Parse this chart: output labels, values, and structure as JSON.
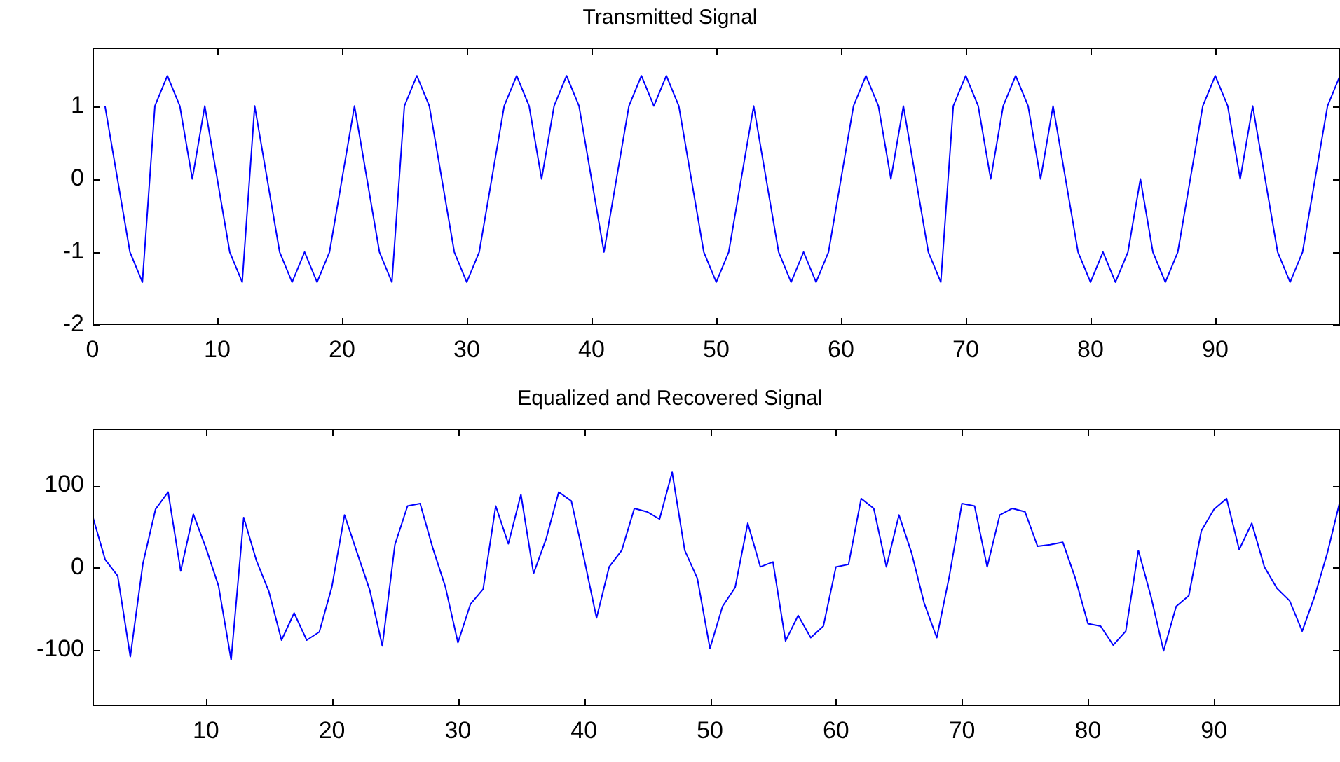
{
  "chart_data": [
    {
      "type": "line",
      "title": "Transmitted Signal",
      "color": "#0000ff",
      "marker": "none",
      "line_style": "solid",
      "grid": false,
      "legend": false,
      "x": [
        1,
        2,
        3,
        4,
        5,
        6,
        7,
        8,
        9,
        10,
        11,
        12,
        13,
        14,
        15,
        16,
        17,
        18,
        19,
        20,
        21,
        22,
        23,
        24,
        25,
        26,
        27,
        28,
        29,
        30,
        31,
        32,
        33,
        34,
        35,
        36,
        37,
        38,
        39,
        40,
        41,
        42,
        43,
        44,
        45,
        46,
        47,
        48,
        49,
        50,
        51,
        52,
        53,
        54,
        55,
        56,
        57,
        58,
        59,
        60,
        61,
        62,
        63,
        64,
        65,
        66,
        67,
        68,
        69,
        70,
        71,
        72,
        73,
        74,
        75,
        76,
        77,
        78,
        79,
        80,
        81,
        82,
        83,
        84,
        85,
        86,
        87,
        88,
        89,
        90,
        91,
        92,
        93,
        94,
        95,
        96,
        97,
        98,
        99,
        100
      ],
      "values": [
        1,
        0,
        -1,
        -1.414,
        1,
        1.414,
        1,
        0,
        1,
        0,
        -1,
        -1.414,
        1,
        0,
        -1,
        -1.414,
        -1,
        -1.414,
        -1,
        0,
        1,
        0,
        -1,
        -1.414,
        1,
        1.414,
        1,
        0,
        -1,
        -1.414,
        -1,
        0,
        1,
        1.414,
        1,
        0,
        1,
        1.414,
        1,
        0,
        -1,
        0,
        1,
        1.414,
        1,
        1.414,
        1,
        0,
        -1,
        -1.414,
        -1,
        0,
        1,
        0,
        -1,
        -1.414,
        -1,
        -1.414,
        -1,
        0,
        1,
        1.414,
        1,
        0,
        1,
        0,
        -1,
        -1.414,
        1,
        1.414,
        1,
        0,
        1,
        1.414,
        1,
        0,
        1,
        0,
        -1,
        -1.414,
        -1,
        -1.414,
        -1,
        0,
        -1,
        -1.414,
        -1,
        0,
        1,
        1.414,
        1,
        0,
        1,
        0,
        -1,
        -1.414,
        -1,
        0,
        1,
        1.414
      ],
      "xlim": [
        0,
        100
      ],
      "ylim": [
        -2,
        1.8
      ],
      "xticks": [
        0,
        10,
        20,
        30,
        40,
        50,
        60,
        70,
        80,
        90
      ],
      "yticks": [
        -2,
        -1,
        0,
        1
      ]
    },
    {
      "type": "line",
      "title": "Equalized and Recovered Signal",
      "color": "#0000ff",
      "marker": "none",
      "line_style": "solid",
      "grid": false,
      "legend": false,
      "x": [
        1,
        2,
        3,
        4,
        5,
        6,
        7,
        8,
        9,
        10,
        11,
        12,
        13,
        14,
        15,
        16,
        17,
        18,
        19,
        20,
        21,
        22,
        23,
        24,
        25,
        26,
        27,
        28,
        29,
        30,
        31,
        32,
        33,
        34,
        35,
        36,
        37,
        38,
        39,
        40,
        41,
        42,
        43,
        44,
        45,
        46,
        47,
        48,
        49,
        50,
        51,
        52,
        53,
        54,
        55,
        56,
        57,
        58,
        59,
        60,
        61,
        62,
        63,
        64,
        65,
        66,
        67,
        68,
        69,
        70,
        71,
        72,
        73,
        74,
        75,
        76,
        77,
        78,
        79,
        80,
        81,
        82,
        83,
        84,
        85,
        86,
        87,
        88,
        89,
        90,
        91,
        92,
        93,
        94,
        95,
        96,
        97,
        98,
        99,
        100
      ],
      "values": [
        63,
        10,
        -10,
        -108,
        5,
        71,
        92,
        -4,
        65,
        24,
        -22,
        -112,
        61,
        9,
        -29,
        -88,
        -55,
        -88,
        -78,
        -23,
        64,
        18,
        -27,
        -95,
        28,
        75,
        78,
        24,
        -23,
        -91,
        -44,
        -26,
        75,
        29,
        89,
        -7,
        35,
        92,
        81,
        12,
        -61,
        1,
        21,
        72,
        68,
        59,
        116,
        21,
        -13,
        -98,
        -47,
        -24,
        54,
        1,
        7,
        -89,
        -58,
        -85,
        -71,
        1,
        4,
        84,
        72,
        1,
        64,
        18,
        -43,
        -85,
        -10,
        78,
        75,
        1,
        64,
        72,
        68,
        26,
        28,
        31,
        -13,
        -68,
        -71,
        -94,
        -77,
        21,
        -35,
        -101,
        -47,
        -34,
        45,
        71,
        84,
        22,
        54,
        1,
        -25,
        -40,
        -77,
        -34,
        18,
        81
      ],
      "xlim": [
        1,
        100
      ],
      "ylim": [
        -168,
        169
      ],
      "xticks": [
        10,
        20,
        30,
        40,
        50,
        60,
        70,
        80,
        90
      ],
      "yticks": [
        -100,
        0,
        100
      ]
    }
  ]
}
